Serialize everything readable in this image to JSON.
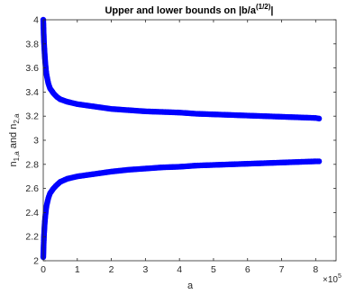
{
  "chart_data": {
    "type": "scatter",
    "title_main": "Upper and lower bounds on |b/a",
    "title_sup": "(1/2)",
    "title_end": "|",
    "xlabel": "a",
    "ylabel_main": "n",
    "ylabel_sub1": "1,a",
    "ylabel_mid": " and n",
    "ylabel_sub2": "2,a",
    "x_exponent_prefix": "×10",
    "x_exponent": "5",
    "xlim": [
      0,
      8.6
    ],
    "ylim": [
      2,
      4
    ],
    "x_scale_factor": 100000,
    "xticks": [
      "0",
      "1",
      "2",
      "3",
      "4",
      "5",
      "6",
      "7",
      "8"
    ],
    "yticks": [
      "2",
      "2.2",
      "2.4",
      "2.6",
      "2.8",
      "3",
      "3.2",
      "3.4",
      "3.6",
      "3.8",
      "4"
    ],
    "marker_color": "#0000ff",
    "series": [
      {
        "x": [
          0.0,
          0.01,
          0.02,
          0.04,
          0.06,
          0.08,
          0.1,
          0.15,
          0.2,
          0.3,
          0.4,
          0.5,
          0.7,
          1.0,
          1.5,
          2.0,
          2.5,
          3.0,
          3.5,
          4.0,
          4.5,
          5.0,
          5.5,
          6.0,
          6.5,
          7.0,
          7.5,
          8.0,
          8.1
        ],
        "y": [
          4.0,
          3.9,
          3.82,
          3.72,
          3.64,
          3.58,
          3.54,
          3.47,
          3.43,
          3.39,
          3.36,
          3.34,
          3.32,
          3.3,
          3.28,
          3.26,
          3.25,
          3.24,
          3.235,
          3.23,
          3.22,
          3.215,
          3.21,
          3.205,
          3.2,
          3.195,
          3.19,
          3.185,
          3.18
        ]
      },
      {
        "x": [
          0.0,
          0.01,
          0.02,
          0.04,
          0.06,
          0.08,
          0.1,
          0.15,
          0.2,
          0.3,
          0.4,
          0.5,
          0.7,
          1.0,
          1.5,
          2.0,
          2.5,
          3.0,
          3.5,
          4.0,
          4.5,
          5.0,
          5.5,
          6.0,
          6.5,
          7.0,
          7.5,
          8.0,
          8.1
        ],
        "y": [
          2.03,
          2.12,
          2.2,
          2.3,
          2.37,
          2.42,
          2.46,
          2.52,
          2.56,
          2.6,
          2.63,
          2.655,
          2.68,
          2.7,
          2.72,
          2.74,
          2.755,
          2.765,
          2.775,
          2.78,
          2.79,
          2.795,
          2.8,
          2.805,
          2.81,
          2.815,
          2.82,
          2.825,
          2.825
        ]
      }
    ]
  }
}
